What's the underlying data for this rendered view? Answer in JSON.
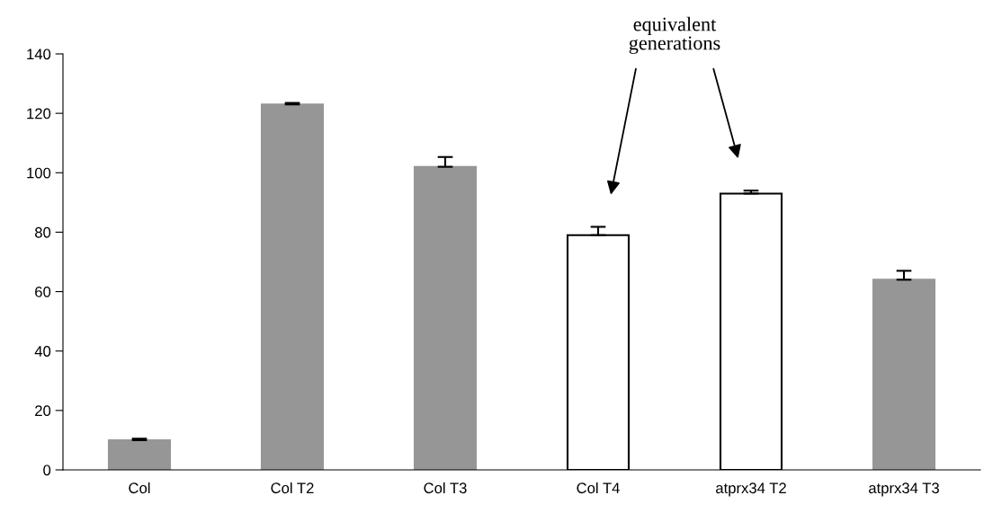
{
  "chart_data": {
    "type": "bar",
    "categories": [
      "Col",
      "Col T2",
      "Col T3",
      "Col T4",
      "atprx34 T2",
      "atprx34 T3"
    ],
    "values": [
      10,
      123,
      102,
      79,
      93,
      64
    ],
    "errors": [
      0.5,
      0.5,
      3.3,
      2.8,
      1,
      3
    ],
    "colors": [
      "#969696",
      "#969696",
      "#969696",
      "#ffffff",
      "#ffffff",
      "#969696"
    ],
    "ylim": [
      0,
      140
    ],
    "yticks": [
      0,
      20,
      40,
      60,
      80,
      100,
      120,
      140
    ],
    "grid": false,
    "legend": false,
    "annotations": [
      "equivalent\ngenerations"
    ]
  }
}
